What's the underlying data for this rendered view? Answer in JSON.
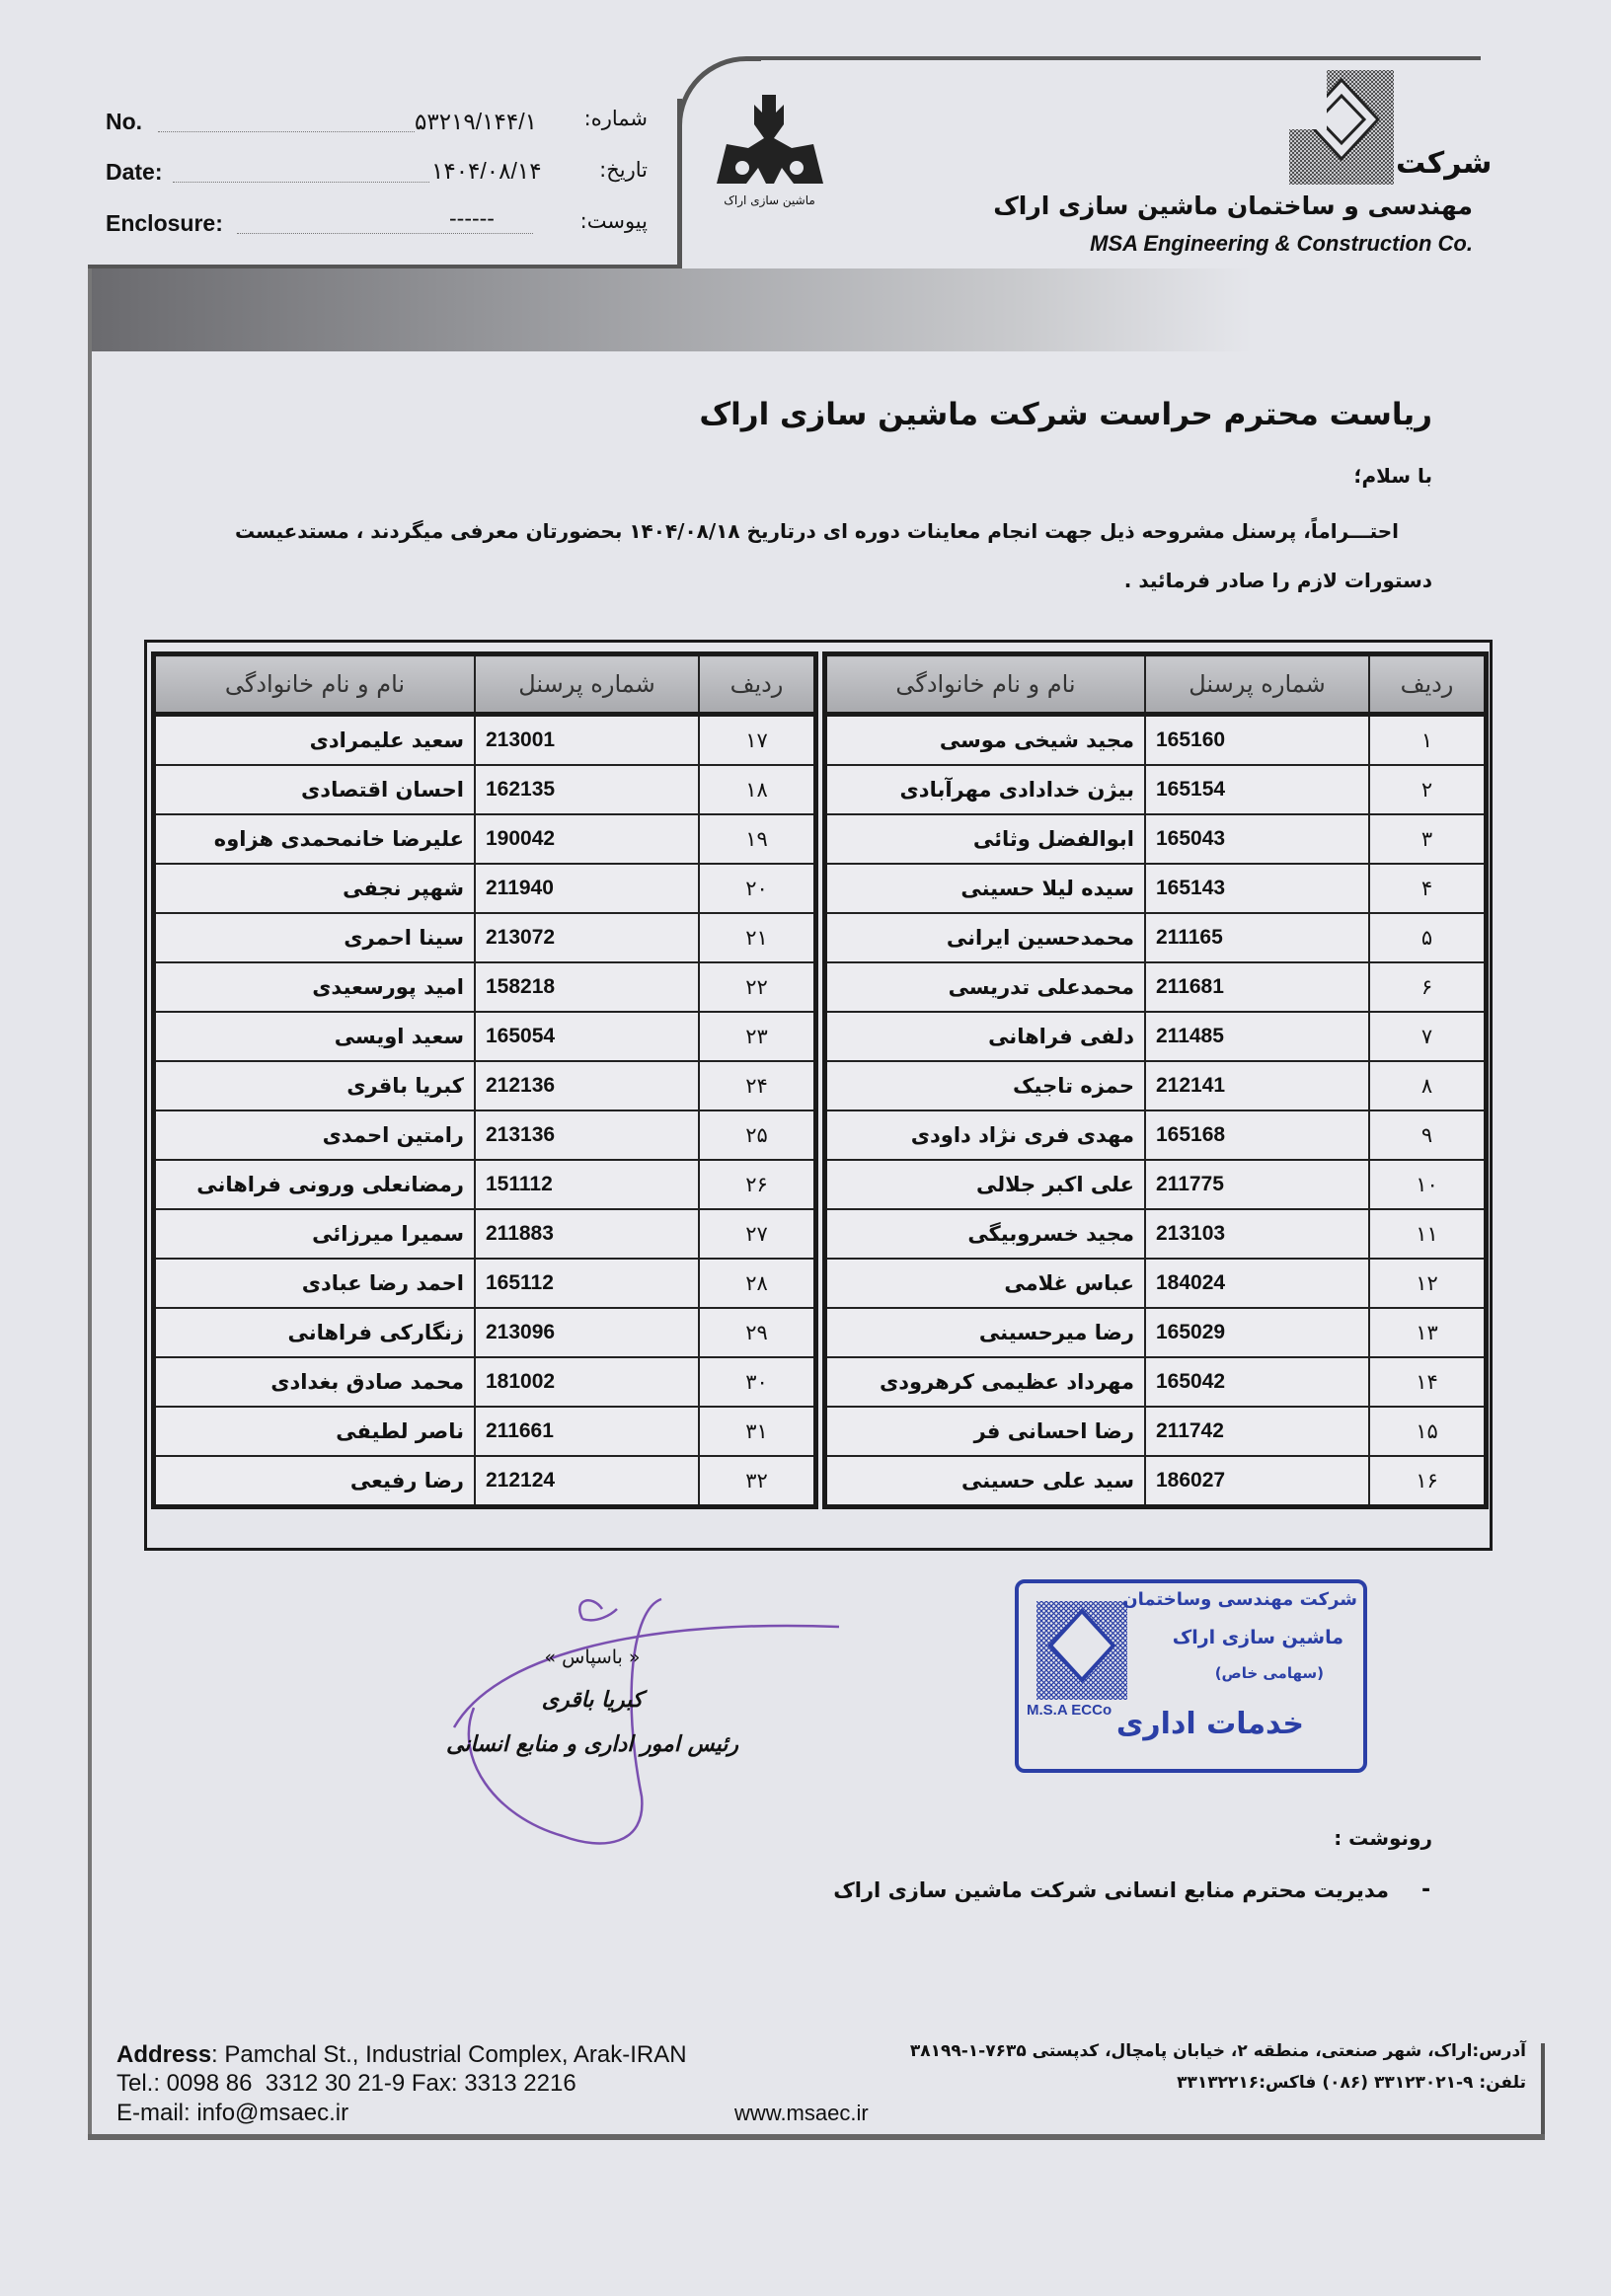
{
  "header": {
    "no_label_en": "No.",
    "no_label_fa": "شماره:",
    "no_value": "۵۳۲۱۹/۱۴۴/۱",
    "date_label_en": "Date:",
    "date_label_fa": "تاریخ:",
    "date_value": "۱۴۰۴/۰۸/۱۴",
    "enclosure_label_en": "Enclosure:",
    "enclosure_label_fa": "پیوست:",
    "enclosure_value": "------",
    "logo_caption": "ماشین سازی اراک",
    "company_prefix": "شرکت",
    "company_name_fa": "مهندسی و ساختمان ماشین سازی اراک",
    "company_name_en": "MSA Engineering & Construction Co."
  },
  "letter": {
    "recipient": "ریاست محترم حراست شرکت ماشین سازی اراک",
    "greeting": "با سلام؛",
    "body_line1": "احتـــراماً، پرسنل مشروحه ذیل جهت انجام معاینات دوره ای درتاریخ ۱۴۰۴/۰۸/۱۸ بحضورتان معرفی میگردند ، مستدعیست",
    "body_line2": "دستورات لازم را صادر فرمائید ."
  },
  "table": {
    "columns": [
      "ردیف",
      "شماره پرسنل",
      "نام و نام خانوادگی"
    ],
    "right_rows": [
      [
        "۱",
        "165160",
        "مجید شیخی موسی"
      ],
      [
        "۲",
        "165154",
        "بیژن خدادادی مهرآبادی"
      ],
      [
        "۳",
        "165043",
        "ابوالفضل وثائی"
      ],
      [
        "۴",
        "165143",
        "سیده لیلا حسینی"
      ],
      [
        "۵",
        "211165",
        "محمدحسین ایرانی"
      ],
      [
        "۶",
        "211681",
        "محمدعلی تدریسی"
      ],
      [
        "۷",
        "211485",
        "دلفی فراهانی"
      ],
      [
        "۸",
        "212141",
        "حمزه تاجیک"
      ],
      [
        "۹",
        "165168",
        "مهدی فری نژاد داودی"
      ],
      [
        "۱۰",
        "211775",
        "علی اکبر جلالی"
      ],
      [
        "۱۱",
        "213103",
        "مجید خسروبیگی"
      ],
      [
        "۱۲",
        "184024",
        "عباس غلامی"
      ],
      [
        "۱۳",
        "165029",
        "رضا میرحسینی"
      ],
      [
        "۱۴",
        "165042",
        "مهرداد عظیمی کرهرودی"
      ],
      [
        "۱۵",
        "211742",
        "رضا احسانی فر"
      ],
      [
        "۱۶",
        "186027",
        "سید علی حسینی"
      ]
    ],
    "left_rows": [
      [
        "۱۷",
        "213001",
        "سعید علیمرادی"
      ],
      [
        "۱۸",
        "162135",
        "احسان اقتصادی"
      ],
      [
        "۱۹",
        "190042",
        "علیرضا خانمحمدی هزاوه"
      ],
      [
        "۲۰",
        "211940",
        "شهپر نجفی"
      ],
      [
        "۲۱",
        "213072",
        "سینا احمری"
      ],
      [
        "۲۲",
        "158218",
        "امید پورسعیدی"
      ],
      [
        "۲۳",
        "165054",
        "سعید اویسی"
      ],
      [
        "۲۴",
        "212136",
        "کبریا باقری"
      ],
      [
        "۲۵",
        "213136",
        "رامتین احمدی"
      ],
      [
        "۲۶",
        "151112",
        "رمضانعلی ورونی فراهانی"
      ],
      [
        "۲۷",
        "211883",
        "سمیرا میرزائی"
      ],
      [
        "۲۸",
        "165112",
        "احمد رضا عبادی"
      ],
      [
        "۲۹",
        "213096",
        "زنگارکی فراهانی"
      ],
      [
        "۳۰",
        "181002",
        "محمد صادق بغدادی"
      ],
      [
        "۳۱",
        "211661",
        "ناصر لطیفی"
      ],
      [
        "۳۲",
        "212124",
        "رضا رفیعی"
      ]
    ]
  },
  "signature": {
    "closing": "« باسپاس »",
    "name": "کبریا باقری",
    "title": "رئیس امور اداری و منابع انسانی"
  },
  "stamp": {
    "line1": "شرکت مهندسی وساختمان",
    "line2": "ماشین سازی اراک",
    "line3": "(سهامی خاص)",
    "abbr": "M.S.A ECCo",
    "department": "خدمات اداری",
    "color": "#2b3fa6"
  },
  "cc": {
    "label": "رونوشت :",
    "items": [
      "مدیریت محترم منابع انسانی شرکت ماشین سازی اراک"
    ]
  },
  "footer": {
    "address_label": "Address",
    "address_en": ": Pamchal St., Industrial Complex, Arak-IRAN",
    "tel_en": "Tel.: 0098 86  3312 30 21-9 Fax: 3313 2216",
    "email_en": "E-mail: info@msaec.ir",
    "website": "www.msaec.ir",
    "address_fa": "آدرس:اراک، شهر صنعتی، منطقه ۲، خیابان پامچال، کدپستی ۷۶۳۵-۱-۳۸۱۹۹",
    "tel_fa": "تلفن: ۹-۳۳۱۲۳۰۲۱ (۰۸۶) فاکس:۳۳۱۳۲۲۱۶"
  }
}
